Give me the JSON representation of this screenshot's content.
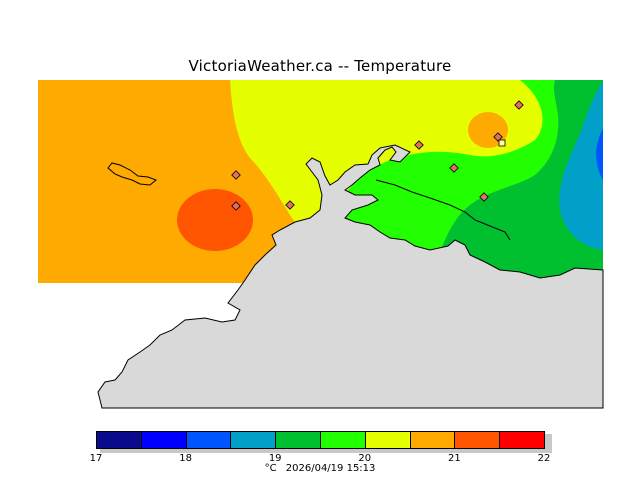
{
  "title": "VictoriaWeather.ca  --  Temperature",
  "legend": {
    "bins": [
      {
        "min": 17.0,
        "max": 17.5,
        "color": "#0a0a8c"
      },
      {
        "min": 17.5,
        "max": 18.0,
        "color": "#0000ff"
      },
      {
        "min": 18.0,
        "max": 18.5,
        "color": "#0055ff"
      },
      {
        "min": 18.5,
        "max": 19.0,
        "color": "#00a0c8"
      },
      {
        "min": 19.0,
        "max": 19.5,
        "color": "#00c030"
      },
      {
        "min": 19.5,
        "max": 20.0,
        "color": "#22ff00"
      },
      {
        "min": 20.0,
        "max": 20.5,
        "color": "#e6ff00"
      },
      {
        "min": 20.5,
        "max": 21.0,
        "color": "#ffaa00"
      },
      {
        "min": 21.0,
        "max": 21.5,
        "color": "#ff5500"
      },
      {
        "min": 21.5,
        "max": 22.0,
        "color": "#ff0000"
      }
    ],
    "ticks": [
      "17",
      "18",
      "19",
      "20",
      "21",
      "22"
    ]
  },
  "footer": {
    "unit": "°C",
    "timestamp": "2026/04/19 15:13"
  },
  "colors": {
    "land": "#d9d9d9",
    "coast": "#000000",
    "station_marker": "#e07060"
  }
}
